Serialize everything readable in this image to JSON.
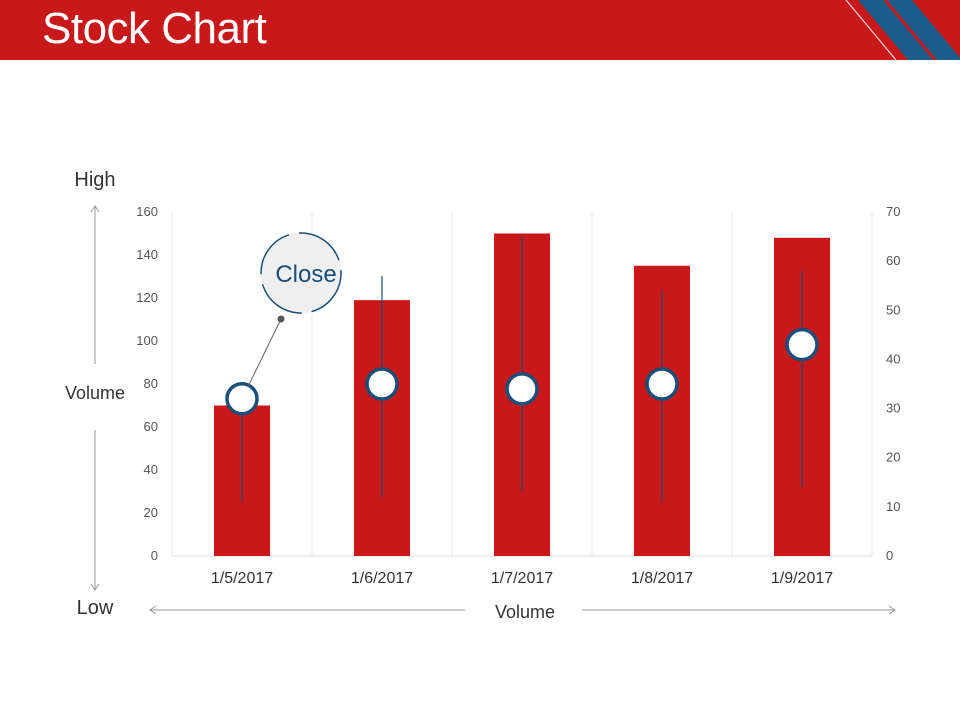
{
  "header": {
    "title": "Stock Chart"
  },
  "colors": {
    "header_bg": "#c8181a",
    "header_accent": "#1a5d8c",
    "bar": "#c8181a",
    "marker": "#1a4f7a",
    "axis_text": "#555555",
    "label_text": "#333333"
  },
  "labels": {
    "high": "High",
    "low": "Low",
    "volume_left": "Volume",
    "volume_bottom": "Volume",
    "callout": "Close"
  },
  "chart_data": {
    "type": "bar",
    "title": "",
    "categories": [
      "1/5/2017",
      "1/6/2017",
      "1/7/2017",
      "1/8/2017",
      "1/9/2017"
    ],
    "series": [
      {
        "name": "Volume",
        "values": [
          70,
          119,
          150,
          135,
          148
        ]
      }
    ],
    "stock": {
      "high": [
        31,
        57,
        65,
        54,
        58
      ],
      "low": [
        11,
        12,
        13,
        11,
        14
      ],
      "close": [
        32,
        35,
        34,
        35,
        43
      ]
    },
    "ylim_left": [
      0,
      160
    ],
    "yticks_left": [
      "0",
      "20",
      "40",
      "60",
      "80",
      "100",
      "120",
      "140",
      "160"
    ],
    "ylim_right": [
      0,
      70
    ],
    "yticks_right": [
      "0",
      "10",
      "20",
      "30",
      "40",
      "50",
      "60",
      "70"
    ],
    "grid": "vertical",
    "callout_category": "1/5/2017"
  }
}
